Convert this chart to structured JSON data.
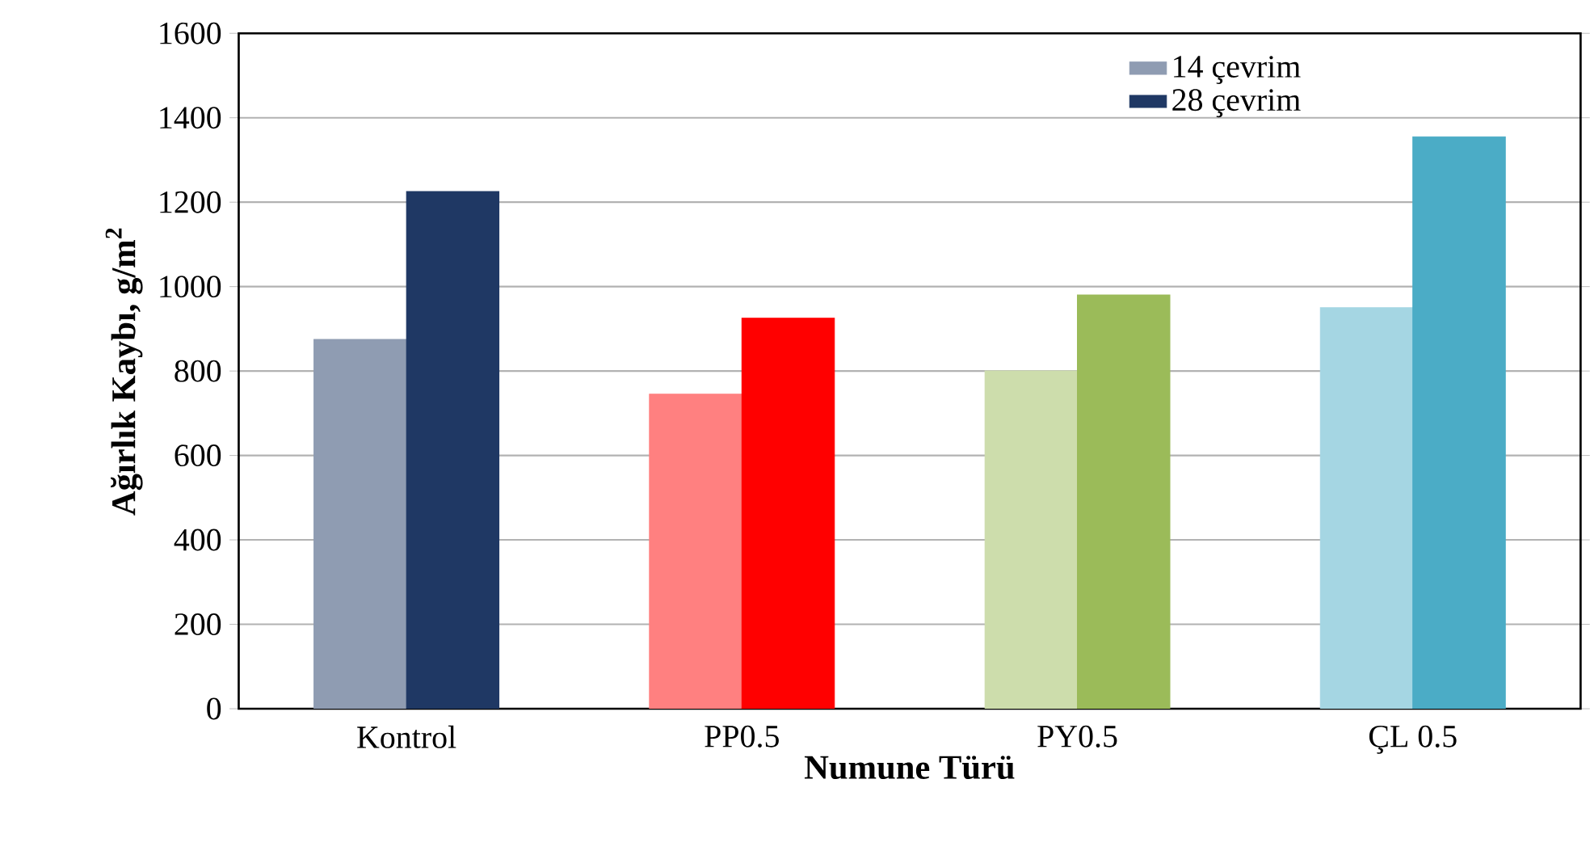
{
  "chart_data": {
    "type": "bar",
    "xlabel": "Numune Türü",
    "ylabel": "Ağırlık Kaybı, g/m$^{2}$",
    "categories": [
      "Kontrol",
      "PP0.5",
      "PY0.5",
      "ÇL 0.5"
    ],
    "series": [
      {
        "name": "14 çevrim",
        "colors": [
          "#8f9cb2",
          "#ff8080",
          "#cdddac",
          "#a5d6e3"
        ],
        "values": [
          875,
          745,
          800,
          950
        ]
      },
      {
        "name": "28 çevrim",
        "colors": [
          "#1f3864",
          "#ff0000",
          "#9bbb59",
          "#4bacc6"
        ],
        "values": [
          1225,
          925,
          980,
          1355
        ]
      }
    ],
    "ylim": [
      0,
      1600
    ],
    "yticks": [
      0,
      200,
      400,
      600,
      800,
      1000,
      1200,
      1400,
      1600
    ],
    "grid": "y",
    "legend": "top right"
  }
}
